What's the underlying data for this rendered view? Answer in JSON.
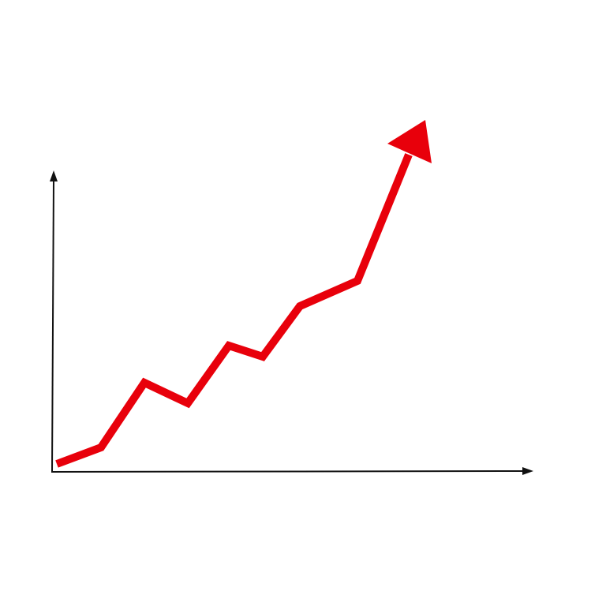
{
  "chart_data": {
    "type": "line",
    "color": "#e8000b"
  }
}
